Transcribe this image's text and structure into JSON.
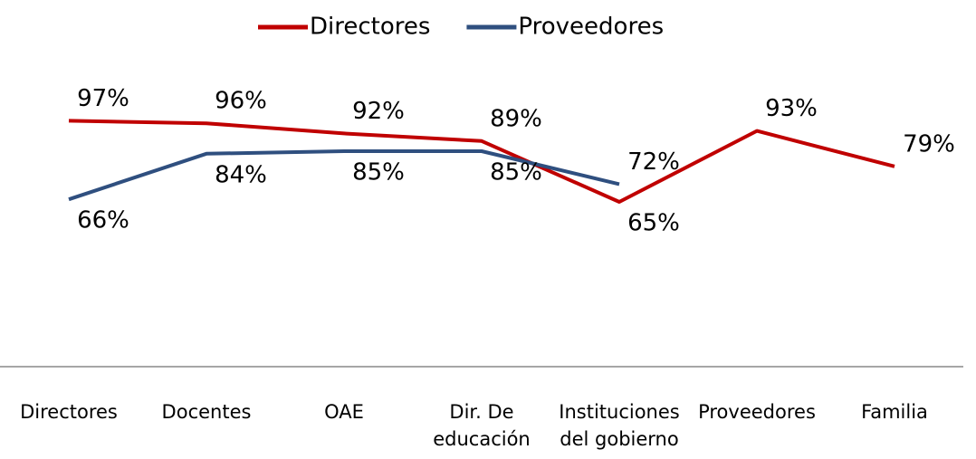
{
  "chart_data": {
    "type": "line",
    "categories": [
      "Directores",
      "Docentes",
      "OAE",
      "Dir. De educación",
      "Instituciones del gobierno",
      "Proveedores",
      "Familia"
    ],
    "series": [
      {
        "name": "Directores",
        "color": "#c00000",
        "values": [
          97,
          96,
          92,
          89,
          65,
          93,
          79
        ],
        "value_labels": [
          "97%",
          "96%",
          "92%",
          "89%",
          "65%",
          "93%",
          "79%"
        ]
      },
      {
        "name": "Proveedores",
        "color": "#2f4f7f",
        "values": [
          66,
          84,
          85,
          85,
          72,
          null,
          null
        ],
        "value_labels": [
          "66%",
          "84%",
          "85%",
          "85%",
          "72%",
          null,
          null
        ]
      }
    ],
    "ylim": [
      0,
      100
    ],
    "legend": "top"
  }
}
